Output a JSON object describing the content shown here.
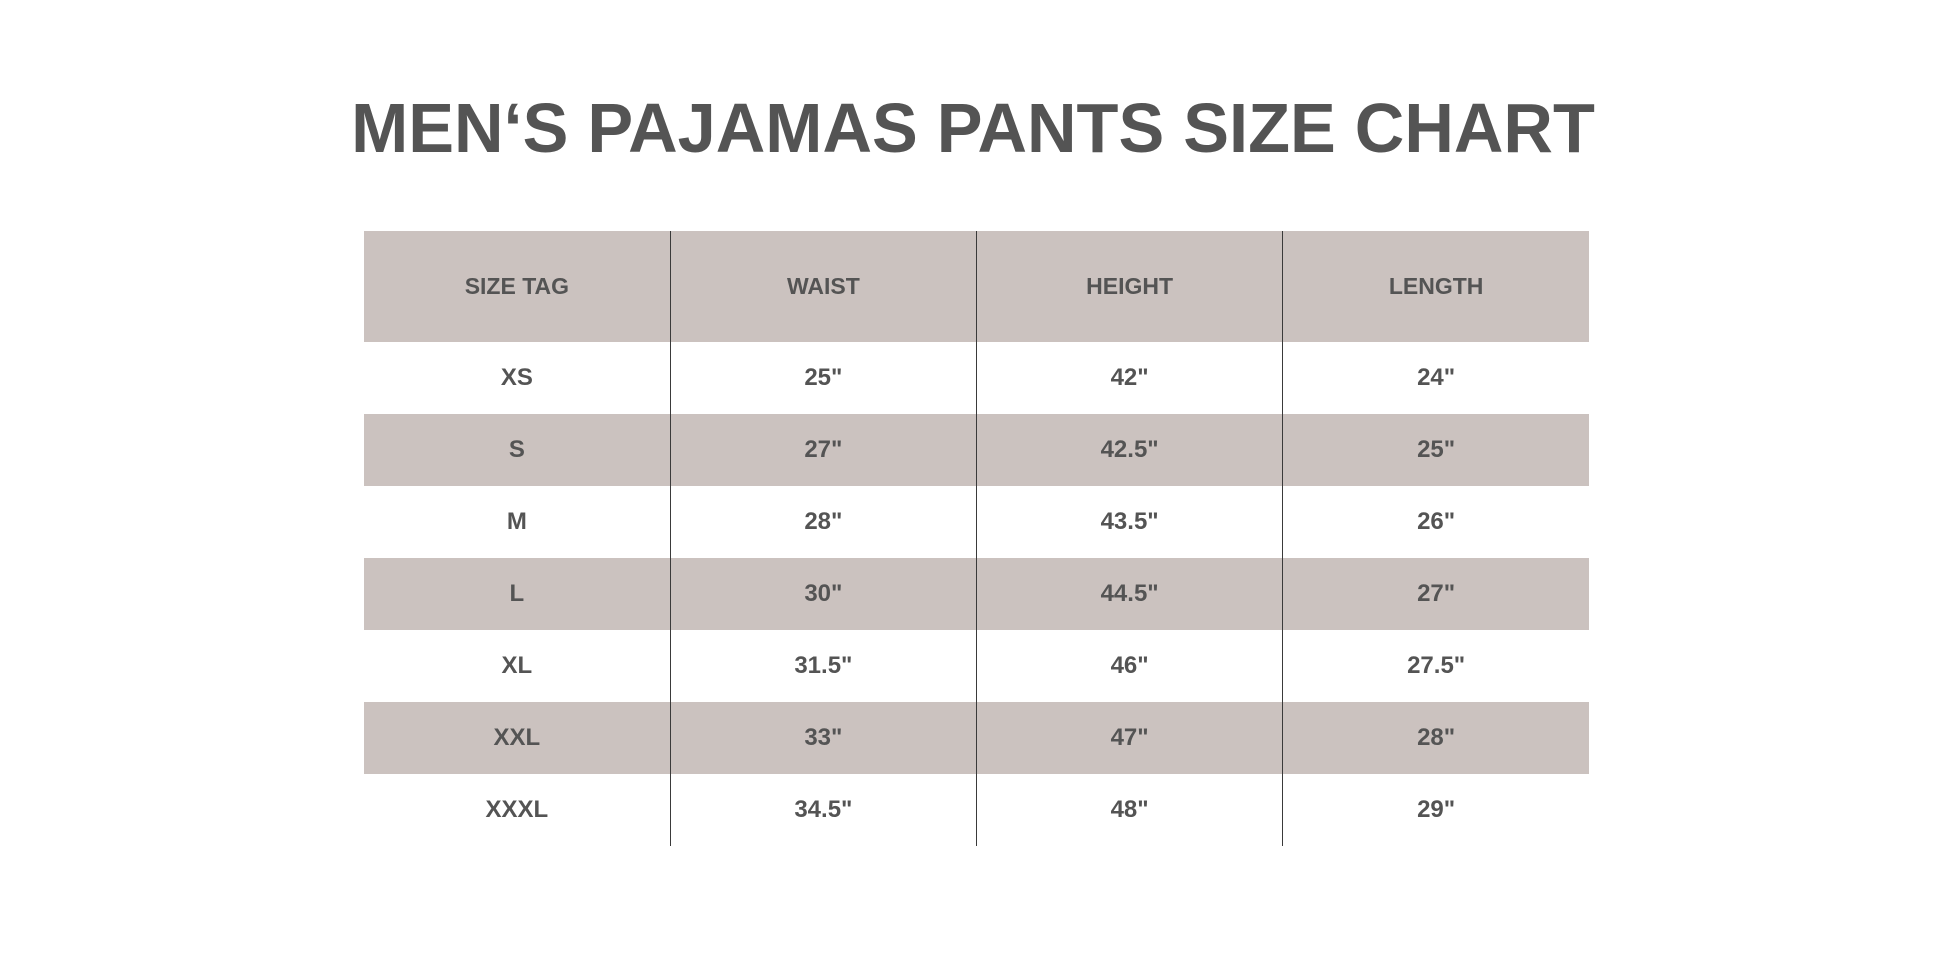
{
  "title": "MEN‘S PAJAMAS PANTS SIZE CHART",
  "colors": {
    "shade": "#cbc2bf",
    "text": "#545454",
    "divider": "#3a3a3a"
  },
  "table": {
    "headers": [
      "SIZE TAG",
      "WAIST",
      "HEIGHT",
      "LENGTH"
    ],
    "rows": [
      [
        "XS",
        "25\"",
        "42\"",
        "24\""
      ],
      [
        "S",
        "27\"",
        "42.5\"",
        "25\""
      ],
      [
        "M",
        "28\"",
        "43.5\"",
        "26\""
      ],
      [
        "L",
        "30\"",
        "44.5\"",
        "27\""
      ],
      [
        "XL",
        "31.5\"",
        "46\"",
        "27.5\""
      ],
      [
        "XXL",
        "33\"",
        "47\"",
        "28\""
      ],
      [
        "XXXL",
        "34.5\"",
        "48\"",
        "29\""
      ]
    ]
  }
}
